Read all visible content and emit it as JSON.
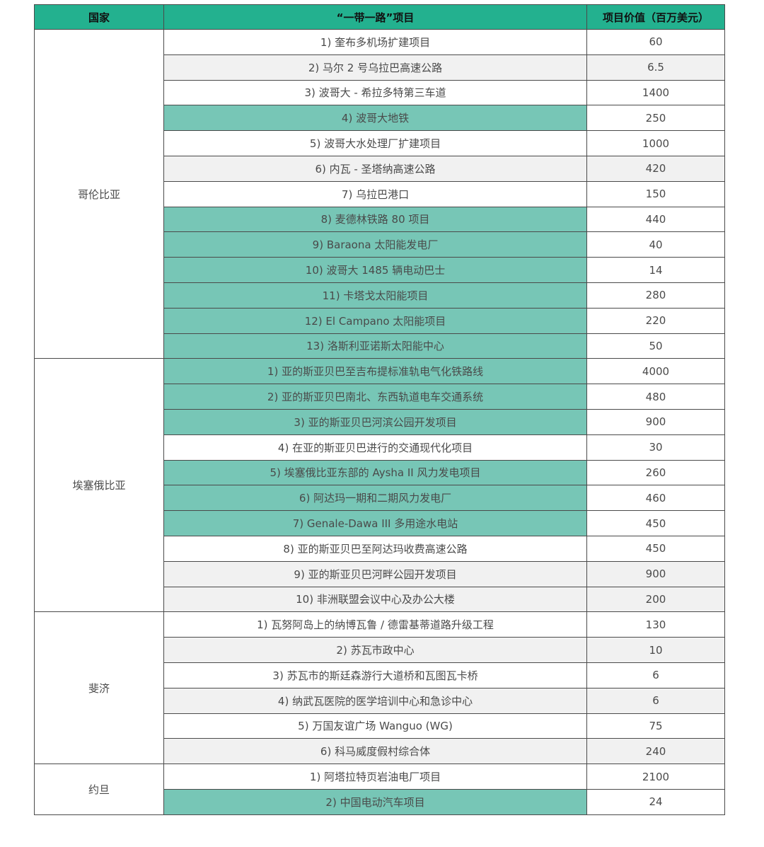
{
  "header": {
    "country": "国家",
    "project": "“一带一路”项目",
    "value": "项目价值（百万美元）"
  },
  "colors": {
    "header": "#23b18f",
    "highlight": "#77c6b6",
    "alt_row": "#f1f1f1"
  },
  "groups": [
    {
      "country": "哥伦比亚",
      "rows": [
        {
          "project": "1) 奎布多机场扩建项目",
          "value": "60",
          "style": "white"
        },
        {
          "project": "2) 马尔 2 号乌拉巴高速公路",
          "value": "6.5",
          "style": "gray"
        },
        {
          "project": "3) 波哥大 - 希拉多特第三车道",
          "value": "1400",
          "style": "white"
        },
        {
          "project": "4) 波哥大地铁",
          "value": "250",
          "style": "teal"
        },
        {
          "project": "5) 波哥大水处理厂扩建项目",
          "value": "1000",
          "style": "white"
        },
        {
          "project": "6) 内瓦 - 圣塔纳高速公路",
          "value": "420",
          "style": "gray"
        },
        {
          "project": "7) 乌拉巴港口",
          "value": "150",
          "style": "white"
        },
        {
          "project": "8) 麦德林铁路 80 项目",
          "value": "440",
          "style": "teal"
        },
        {
          "project": "9) Baraona 太阳能发电厂",
          "value": "40",
          "style": "teal"
        },
        {
          "project": "10) 波哥大 1485 辆电动巴士",
          "value": "14",
          "style": "teal"
        },
        {
          "project": "11) 卡塔戈太阳能项目",
          "value": "280",
          "style": "teal"
        },
        {
          "project": "12) El Campano 太阳能项目",
          "value": "220",
          "style": "teal"
        },
        {
          "project": "13) 洛斯利亚诺斯太阳能中心",
          "value": "50",
          "style": "teal"
        }
      ]
    },
    {
      "country": "埃塞俄比亚",
      "rows": [
        {
          "project": "1) 亚的斯亚贝巴至吉布提标准轨电气化铁路线",
          "value": "4000",
          "style": "teal"
        },
        {
          "project": "2) 亚的斯亚贝巴南北、东西轨道电车交通系统",
          "value": "480",
          "style": "teal"
        },
        {
          "project": "3) 亚的斯亚贝巴河滨公园开发项目",
          "value": "900",
          "style": "teal"
        },
        {
          "project": "4) 在亚的斯亚贝巴进行的交通现代化项目",
          "value": "30",
          "style": "white"
        },
        {
          "project": "5) 埃塞俄比亚东部的 Aysha II 风力发电项目",
          "value": "260",
          "style": "teal"
        },
        {
          "project": "6) 阿达玛一期和二期风力发电厂",
          "value": "460",
          "style": "teal"
        },
        {
          "project": "7) Genale-Dawa III 多用途水电站",
          "value": "450",
          "style": "teal"
        },
        {
          "project": "8) 亚的斯亚贝巴至阿达玛收费高速公路",
          "value": "450",
          "style": "white"
        },
        {
          "project": "9) 亚的斯亚贝巴河畔公园开发项目",
          "value": "900",
          "style": "gray"
        },
        {
          "project": "10) 非洲联盟会议中心及办公大楼",
          "value": "200",
          "style": "gray"
        }
      ]
    },
    {
      "country": "斐济",
      "rows": [
        {
          "project": "1) 瓦努阿岛上的纳博瓦鲁 / 德雷基蒂道路升级工程",
          "value": "130",
          "style": "white"
        },
        {
          "project": "2) 苏瓦市政中心",
          "value": "10",
          "style": "gray"
        },
        {
          "project": "3) 苏瓦市的斯廷森游行大道桥和瓦图瓦卡桥",
          "value": "6",
          "style": "white"
        },
        {
          "project": "4) 纳武瓦医院的医学培训中心和急诊中心",
          "value": "6",
          "style": "gray"
        },
        {
          "project": "5) 万国友谊广场 Wanguo (WG)",
          "value": "75",
          "style": "white"
        },
        {
          "project": "6) 科马威度假村综合体",
          "value": "240",
          "style": "gray"
        }
      ]
    },
    {
      "country": "约旦",
      "rows": [
        {
          "project": "1) 阿塔拉特页岩油电厂项目",
          "value": "2100",
          "style": "white"
        },
        {
          "project": "2) 中国电动汽车项目",
          "value": "24",
          "style": "teal"
        }
      ]
    }
  ]
}
